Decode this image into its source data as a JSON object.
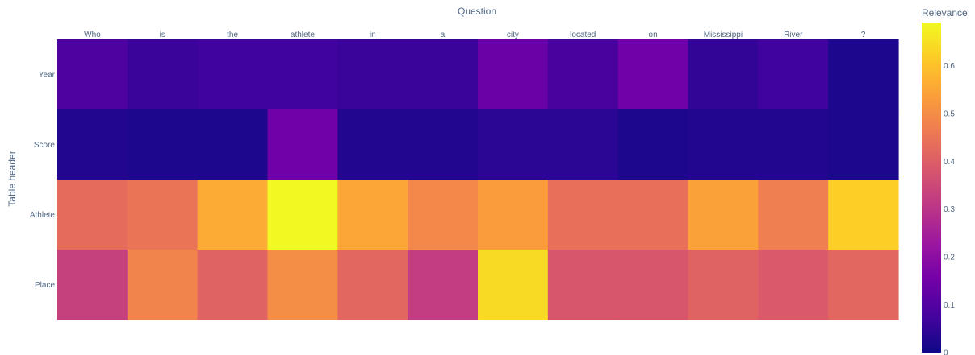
{
  "chart_data": {
    "type": "heatmap",
    "xlabel": "Question",
    "ylabel": "Table header",
    "x": [
      "Who",
      "is",
      "the",
      "athlete",
      "in",
      "a",
      "city",
      "located",
      "on",
      "Mississippi",
      "River",
      "?"
    ],
    "y": [
      "Year",
      "Score",
      "Athlete",
      "Place"
    ],
    "z": [
      [
        0.09,
        0.06,
        0.07,
        0.07,
        0.06,
        0.06,
        0.14,
        0.08,
        0.15,
        0.05,
        0.07,
        0.02
      ],
      [
        0.03,
        0.02,
        0.02,
        0.15,
        0.03,
        0.03,
        0.04,
        0.04,
        0.02,
        0.03,
        0.03,
        0.02
      ],
      [
        0.43,
        0.45,
        0.56,
        0.69,
        0.55,
        0.49,
        0.53,
        0.44,
        0.44,
        0.54,
        0.47,
        0.62
      ],
      [
        0.33,
        0.48,
        0.41,
        0.5,
        0.42,
        0.32,
        0.64,
        0.38,
        0.38,
        0.41,
        0.39,
        0.42
      ]
    ],
    "colorscale_name": "Plasma",
    "colorbar": {
      "title": "Relevance",
      "range": [
        0,
        0.69
      ],
      "ticks": [
        0,
        0.1,
        0.2,
        0.3,
        0.4,
        0.5,
        0.6
      ],
      "tick_labels": [
        "0",
        "0.1",
        "0.2",
        "0.3",
        "0.4",
        "0.5",
        "0.6"
      ]
    },
    "x_tick_position": "top",
    "legend": "colorbar-right"
  }
}
